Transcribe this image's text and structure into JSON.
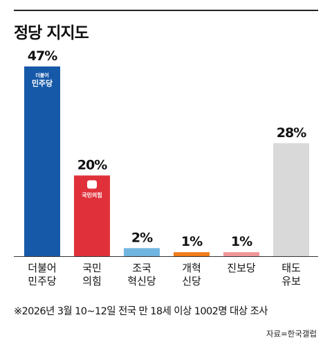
{
  "chart_data": {
    "type": "bar",
    "title": "정당 지지도",
    "categories": [
      [
        "더불어",
        "민주당"
      ],
      [
        "국민",
        "의힘"
      ],
      [
        "조국",
        "혁신당"
      ],
      [
        "개혁",
        "신당"
      ],
      [
        "진보당"
      ],
      [
        "태도",
        "유보"
      ]
    ],
    "values": [
      47,
      20,
      2,
      1,
      1,
      28
    ],
    "value_labels": [
      "47%",
      "20%",
      "2%",
      "1%",
      "1%",
      "28%"
    ],
    "colors": [
      "#1659a8",
      "#e0313b",
      "#71b5e0",
      "#f07c1a",
      "#f2969a",
      "#d9d9d9"
    ],
    "logos": [
      {
        "index": 0,
        "top_text": "더불어",
        "main_text": "민주당",
        "icon": "democratic-party-logo-icon"
      },
      {
        "index": 1,
        "main_text": "국민의힘",
        "icon": "people-power-party-logo-icon"
      }
    ],
    "ylim": [
      0,
      50
    ],
    "grid": false,
    "legend": "none"
  },
  "note": "※2026년 3월 10~12일 전국 만 18세 이상 1002명 대상 조사",
  "source": "자료=한국갤럽"
}
